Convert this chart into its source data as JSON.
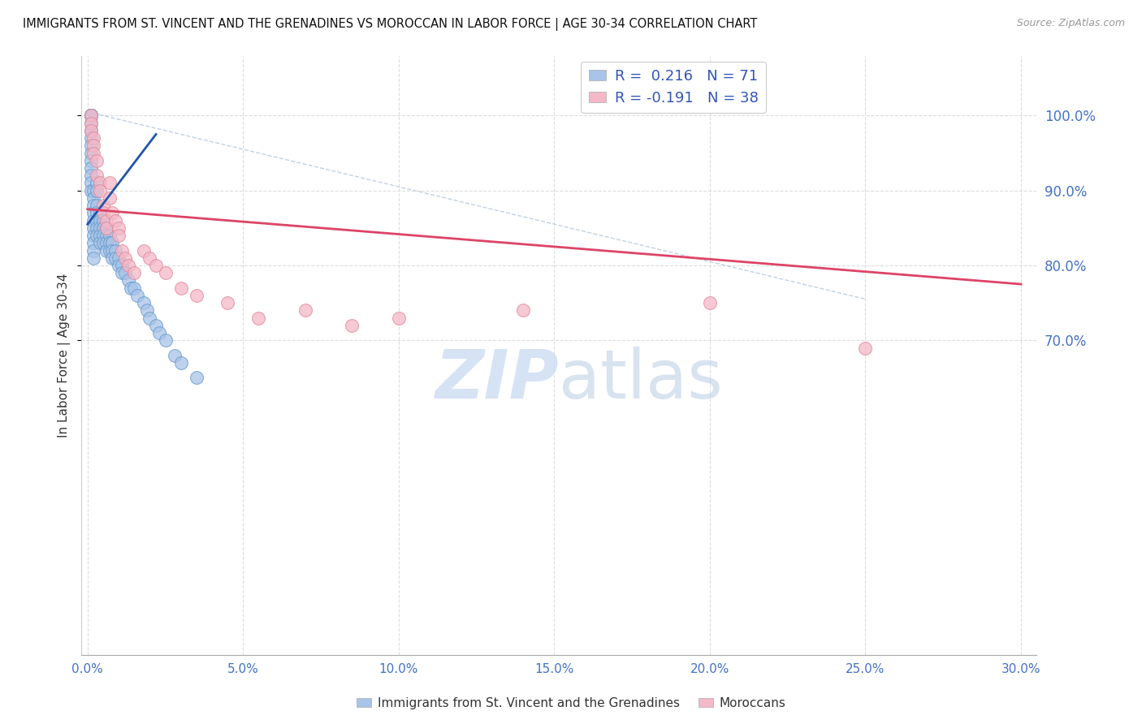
{
  "title": "IMMIGRANTS FROM ST. VINCENT AND THE GRENADINES VS MOROCCAN IN LABOR FORCE | AGE 30-34 CORRELATION CHART",
  "source": "Source: ZipAtlas.com",
  "ylabel": "In Labor Force | Age 30-34",
  "xlim": [
    -0.002,
    0.305
  ],
  "ylim": [
    0.28,
    1.08
  ],
  "blue_R": 0.216,
  "blue_N": 71,
  "pink_R": -0.191,
  "pink_N": 38,
  "blue_color": "#a8c4e8",
  "pink_color": "#f4b8c8",
  "blue_edge_color": "#6699cc",
  "pink_edge_color": "#e08898",
  "blue_line_color": "#2255aa",
  "pink_line_color": "#dd4466",
  "ref_line_color": "#bbccdd",
  "watermark_color": "#c5d8f0",
  "legend_label_blue": "Immigrants from St. Vincent and the Grenadines",
  "legend_label_pink": "Moroccans",
  "legend_R_color": "#3355bb",
  "legend_N_color": "#cc2244",
  "xtick_labels": [
    "0.0%",
    "5.0%",
    "10.0%",
    "15.0%",
    "20.0%",
    "25.0%",
    "30.0%"
  ],
  "xtick_vals": [
    0.0,
    0.05,
    0.1,
    0.15,
    0.2,
    0.25,
    0.3
  ],
  "ytick_vals": [
    0.7,
    0.8,
    0.9,
    1.0
  ],
  "ytick_labels": [
    "70.0%",
    "80.0%",
    "90.0%",
    "100.0%"
  ],
  "blue_x": [
    0.001,
    0.001,
    0.001,
    0.001,
    0.001,
    0.001,
    0.001,
    0.001,
    0.001,
    0.001,
    0.001,
    0.001,
    0.001,
    0.001,
    0.001,
    0.002,
    0.002,
    0.002,
    0.002,
    0.002,
    0.002,
    0.002,
    0.002,
    0.002,
    0.002,
    0.003,
    0.003,
    0.003,
    0.003,
    0.003,
    0.003,
    0.003,
    0.004,
    0.004,
    0.004,
    0.004,
    0.004,
    0.005,
    0.005,
    0.005,
    0.005,
    0.006,
    0.006,
    0.006,
    0.006,
    0.007,
    0.007,
    0.007,
    0.008,
    0.008,
    0.008,
    0.009,
    0.009,
    0.01,
    0.01,
    0.011,
    0.011,
    0.012,
    0.013,
    0.014,
    0.015,
    0.016,
    0.018,
    0.019,
    0.02,
    0.022,
    0.023,
    0.025,
    0.028,
    0.03,
    0.035
  ],
  "blue_y": [
    1.0,
    1.0,
    1.0,
    1.0,
    1.0,
    0.99,
    0.98,
    0.97,
    0.96,
    0.95,
    0.94,
    0.93,
    0.92,
    0.91,
    0.9,
    0.9,
    0.89,
    0.88,
    0.87,
    0.86,
    0.85,
    0.84,
    0.83,
    0.82,
    0.81,
    0.91,
    0.9,
    0.88,
    0.87,
    0.86,
    0.85,
    0.84,
    0.87,
    0.86,
    0.85,
    0.84,
    0.83,
    0.86,
    0.85,
    0.84,
    0.83,
    0.85,
    0.84,
    0.83,
    0.82,
    0.84,
    0.83,
    0.82,
    0.83,
    0.82,
    0.81,
    0.82,
    0.81,
    0.81,
    0.8,
    0.8,
    0.79,
    0.79,
    0.78,
    0.77,
    0.77,
    0.76,
    0.75,
    0.74,
    0.73,
    0.72,
    0.71,
    0.7,
    0.68,
    0.67,
    0.65
  ],
  "pink_x": [
    0.001,
    0.001,
    0.001,
    0.002,
    0.002,
    0.002,
    0.003,
    0.003,
    0.004,
    0.004,
    0.005,
    0.005,
    0.006,
    0.006,
    0.007,
    0.007,
    0.008,
    0.009,
    0.01,
    0.01,
    0.011,
    0.012,
    0.013,
    0.015,
    0.018,
    0.02,
    0.022,
    0.025,
    0.03,
    0.035,
    0.045,
    0.055,
    0.07,
    0.085,
    0.1,
    0.14,
    0.2,
    0.25
  ],
  "pink_y": [
    1.0,
    0.99,
    0.98,
    0.97,
    0.96,
    0.95,
    0.94,
    0.92,
    0.91,
    0.9,
    0.88,
    0.87,
    0.86,
    0.85,
    0.91,
    0.89,
    0.87,
    0.86,
    0.85,
    0.84,
    0.82,
    0.81,
    0.8,
    0.79,
    0.82,
    0.81,
    0.8,
    0.79,
    0.77,
    0.76,
    0.75,
    0.73,
    0.74,
    0.72,
    0.73,
    0.74,
    0.75,
    0.69
  ],
  "blue_trend_x": [
    0.0,
    0.022
  ],
  "blue_trend_y": [
    0.855,
    0.975
  ],
  "pink_trend_x": [
    0.0,
    0.3
  ],
  "pink_trend_y": [
    0.875,
    0.775
  ]
}
